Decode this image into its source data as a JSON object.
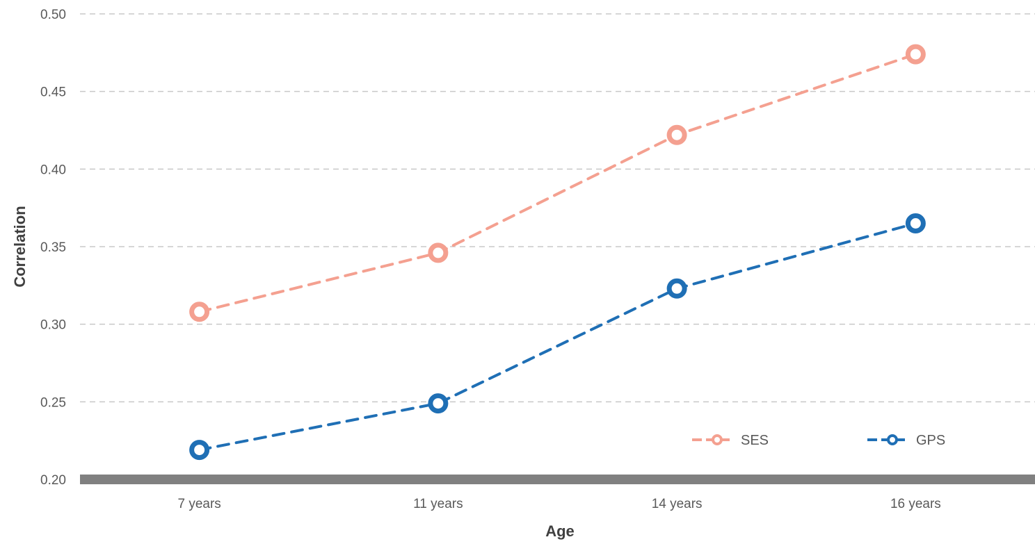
{
  "chart_data": {
    "type": "line",
    "title": "",
    "xlabel": "Age",
    "ylabel": "Correlation",
    "categories": [
      "7 years",
      "11 years",
      "14 years",
      "16 years"
    ],
    "ylim": [
      0.2,
      0.5
    ],
    "yticks": [
      "0.20",
      "0.25",
      "0.30",
      "0.35",
      "0.40",
      "0.45",
      "0.50"
    ],
    "grid": "horizontal-dashed",
    "legend": "bottom-right",
    "series": [
      {
        "name": "SES",
        "values": [
          0.308,
          0.346,
          0.422,
          0.474
        ],
        "color": "#F4A090"
      },
      {
        "name": "GPS",
        "values": [
          0.219,
          0.249,
          0.323,
          0.365
        ],
        "color": "#1F6FB5"
      }
    ]
  },
  "colors": {
    "gridline": "#C8C8C8",
    "baseline": "#808080",
    "tick_text": "#595959",
    "axis_title_text": "#404040"
  }
}
